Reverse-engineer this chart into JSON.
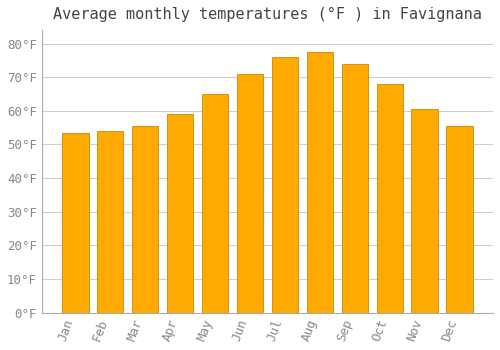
{
  "title": "Average monthly temperatures (°F ) in Favignana",
  "months": [
    "Jan",
    "Feb",
    "Mar",
    "Apr",
    "May",
    "Jun",
    "Jul",
    "Aug",
    "Sep",
    "Oct",
    "Nov",
    "Dec"
  ],
  "values": [
    53.5,
    54,
    55.5,
    59,
    65,
    71,
    76,
    77.5,
    74,
    68,
    60.5,
    55.5
  ],
  "bar_color_top": "#FFB300",
  "bar_color_bottom": "#FFA000",
  "bar_color": "#FFAA00",
  "bar_edge_color": "#CC8800",
  "background_color": "#FFFFFF",
  "grid_color": "#CCCCCC",
  "tick_label_color": "#888888",
  "title_color": "#444444",
  "ylim": [
    0,
    84
  ],
  "yticks": [
    0,
    10,
    20,
    30,
    40,
    50,
    60,
    70,
    80
  ],
  "title_fontsize": 11,
  "tick_fontsize": 9,
  "fig_width": 5.0,
  "fig_height": 3.5,
  "dpi": 100
}
